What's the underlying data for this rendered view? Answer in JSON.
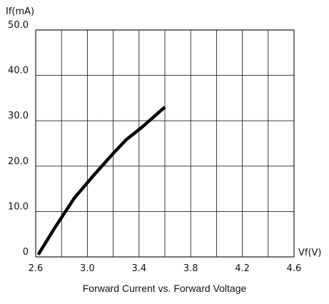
{
  "chart_data": {
    "type": "line",
    "title": "Forward Current vs. Forward Voltage",
    "xlabel": "Vf(V)",
    "ylabel": "If(mA)",
    "xlim": [
      2.6,
      4.6
    ],
    "ylim": [
      0,
      50
    ],
    "grid": true,
    "x_ticks": [
      "2.6",
      "3.0",
      "3.4",
      "3.8",
      "4.2",
      "4.6"
    ],
    "y_ticks": [
      "0",
      "10.0",
      "20.0",
      "30.0",
      "40.0",
      "50.0"
    ],
    "series": [
      {
        "x": [
          2.62,
          2.75,
          2.9,
          3.05,
          3.2,
          3.3,
          3.42,
          3.6
        ],
        "y": [
          0.5,
          6.5,
          13.0,
          18.0,
          22.8,
          25.8,
          28.5,
          33.0
        ],
        "color": "#000000"
      }
    ]
  }
}
